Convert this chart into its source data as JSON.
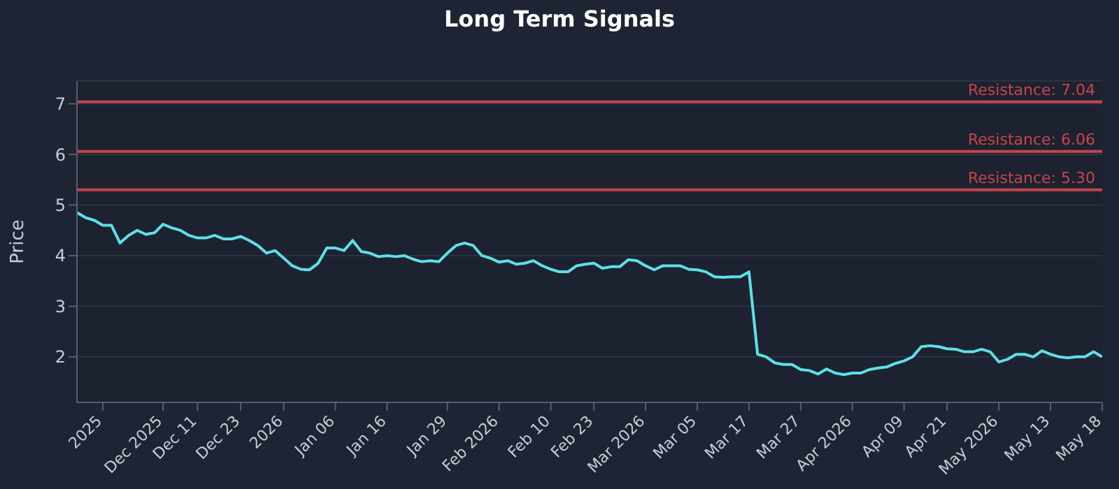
{
  "chart_data": {
    "type": "line",
    "title": "Long Term Signals",
    "ylabel": "Price",
    "categories": [
      null,
      null,
      null,
      "2025",
      null,
      null,
      null,
      null,
      null,
      null,
      "Dec 2025",
      null,
      null,
      null,
      "Dec 11",
      null,
      null,
      null,
      null,
      "Dec 23",
      null,
      null,
      null,
      null,
      "2026",
      null,
      null,
      null,
      null,
      null,
      "Jan 06",
      null,
      null,
      null,
      null,
      null,
      "Jan 16",
      null,
      null,
      null,
      null,
      null,
      null,
      "Jan 29",
      null,
      null,
      null,
      null,
      null,
      "Feb 2026",
      null,
      null,
      null,
      null,
      null,
      "Feb 10",
      null,
      null,
      null,
      null,
      "Feb 23",
      null,
      null,
      null,
      null,
      null,
      "Mar 2026",
      null,
      null,
      null,
      null,
      null,
      "Mar 05",
      null,
      null,
      null,
      null,
      null,
      "Mar 17",
      null,
      null,
      null,
      null,
      null,
      "Mar 27",
      null,
      null,
      null,
      null,
      null,
      "Apr 2026",
      null,
      null,
      null,
      null,
      null,
      "Apr 09",
      null,
      null,
      null,
      null,
      "Apr 21",
      null,
      null,
      null,
      null,
      null,
      "May 2026",
      null,
      null,
      null,
      null,
      null,
      "May 13",
      null,
      null,
      null,
      null,
      null,
      "May 18"
    ],
    "series": [
      {
        "color": "#5ce1e6",
        "values": [
          4.85,
          4.75,
          4.7,
          4.6,
          4.6,
          4.25,
          4.4,
          4.5,
          4.42,
          4.45,
          4.62,
          4.55,
          4.5,
          4.4,
          4.35,
          4.35,
          4.4,
          4.33,
          4.33,
          4.38,
          4.3,
          4.2,
          4.05,
          4.1,
          3.95,
          3.8,
          3.73,
          3.72,
          3.85,
          4.15,
          4.15,
          4.1,
          4.3,
          4.08,
          4.05,
          3.98,
          4.0,
          3.98,
          4.0,
          3.93,
          3.88,
          3.9,
          3.88,
          4.05,
          4.2,
          4.25,
          4.2,
          4.0,
          3.95,
          3.87,
          3.9,
          3.83,
          3.85,
          3.9,
          3.8,
          3.73,
          3.68,
          3.68,
          3.8,
          3.83,
          3.85,
          3.75,
          3.78,
          3.78,
          3.92,
          3.9,
          3.8,
          3.72,
          3.8,
          3.8,
          3.8,
          3.73,
          3.72,
          3.68,
          3.58,
          3.57,
          3.58,
          3.58,
          3.68,
          2.05,
          2.0,
          1.88,
          1.85,
          1.85,
          1.75,
          1.73,
          1.66,
          1.76,
          1.68,
          1.65,
          1.68,
          1.68,
          1.75,
          1.78,
          1.8,
          1.87,
          1.92,
          2.0,
          2.2,
          2.22,
          2.2,
          2.16,
          2.15,
          2.1,
          2.1,
          2.15,
          2.1,
          1.9,
          1.95,
          2.05,
          2.05,
          2.0,
          2.12,
          2.05,
          2.0,
          1.98,
          2.0,
          2.0,
          2.1,
          2.0
        ]
      }
    ],
    "ylim": [
      1.1,
      7.45
    ],
    "yticks": [
      2,
      3,
      4,
      5,
      6,
      7
    ],
    "grid": "y",
    "marker": "none",
    "line_style": "solid",
    "ref_lines": [
      {
        "axis": "y",
        "value": 7.04,
        "label": "Resistance: 7.04",
        "color": "#c9444c"
      },
      {
        "axis": "y",
        "value": 6.06,
        "label": "Resistance: 6.06",
        "color": "#c9444c"
      },
      {
        "axis": "y",
        "value": 5.3,
        "label": "Resistance: 5.30",
        "color": "#c9444c"
      }
    ]
  }
}
